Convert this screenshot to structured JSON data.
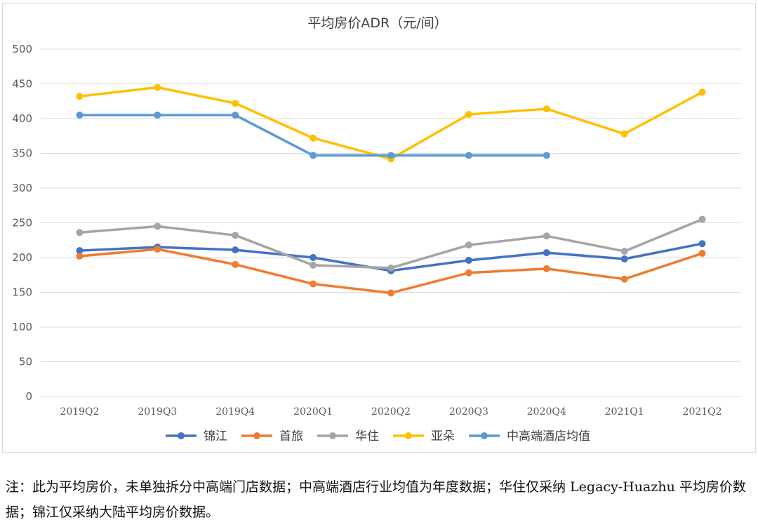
{
  "chart_data": {
    "type": "line",
    "title": "平均房价ADR（元/间）",
    "xlabel": "",
    "ylabel": "",
    "ylim": [
      0,
      500
    ],
    "yticks": [
      0,
      50,
      100,
      150,
      200,
      250,
      300,
      350,
      400,
      450,
      500
    ],
    "grid": true,
    "legend_position": "bottom",
    "categories": [
      "2019Q2",
      "2019Q3",
      "2019Q4",
      "2020Q1",
      "2020Q2",
      "2020Q3",
      "2020Q4",
      "2021Q1",
      "2021Q2"
    ],
    "series": [
      {
        "name": "锦江",
        "color": "#4472c4",
        "values": [
          210,
          215,
          211,
          200,
          181,
          196,
          207,
          198,
          220
        ]
      },
      {
        "name": "首旅",
        "color": "#ed7d31",
        "values": [
          202,
          212,
          190,
          162,
          149,
          178,
          184,
          169,
          206
        ]
      },
      {
        "name": "华住",
        "color": "#a5a5a5",
        "values": [
          236,
          245,
          232,
          189,
          185,
          218,
          231,
          209,
          255
        ]
      },
      {
        "name": "亚朵",
        "color": "#ffc000",
        "values": [
          432,
          445,
          422,
          372,
          342,
          406,
          414,
          378,
          438
        ]
      },
      {
        "name": "中高端酒店均值",
        "color": "#5b9bd5",
        "values": [
          405,
          405,
          405,
          347,
          347,
          347,
          347,
          null,
          null
        ]
      }
    ]
  },
  "note": "注：此为平均房价，未单独拆分中高端门店数据；中高端酒店行业均值为年度数据；华住仅采纳 Legacy-Huazhu 平均房价数据；锦江仅采纳大陆平均房价数据。"
}
